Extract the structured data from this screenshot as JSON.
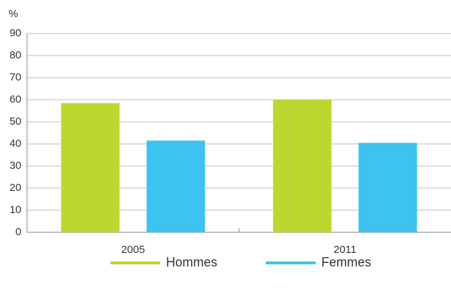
{
  "chart_data": {
    "type": "bar",
    "y_label": "%",
    "categories": [
      "2005",
      "2011"
    ],
    "series": [
      {
        "name": "Hommes",
        "color": "#bed630",
        "values": [
          58.5,
          60
        ]
      },
      {
        "name": "Femmes",
        "color": "#3cc3ef",
        "values": [
          41.5,
          40.5
        ]
      }
    ],
    "ylim": [
      0,
      90
    ],
    "yticks": [
      0,
      10,
      20,
      30,
      40,
      50,
      60,
      70,
      80,
      90
    ],
    "grid": true,
    "legend": "bottom"
  }
}
